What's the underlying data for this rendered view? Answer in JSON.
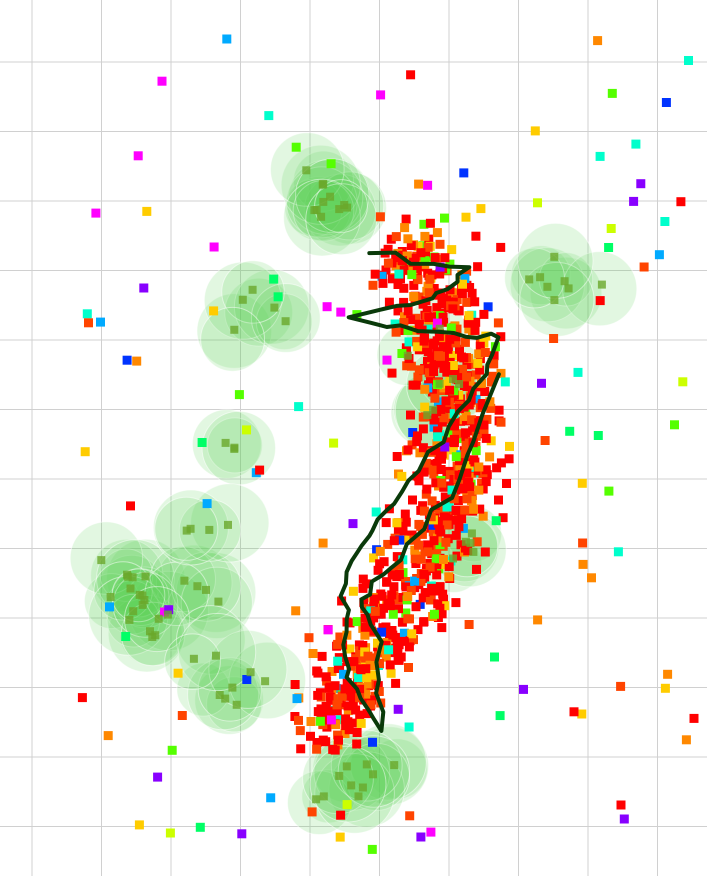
{
  "scene": {
    "background": "#ffffff",
    "grid_color": "#d0d0d0",
    "blob_color": "#5fd35a",
    "path_color": "#0a3a0a",
    "point_palette": [
      "#ff0000",
      "#ff4400",
      "#ff8800",
      "#ffcc00",
      "#ccff00",
      "#55ff00",
      "#00ff66",
      "#00ffcc",
      "#00aaff",
      "#0033ff",
      "#8800ff",
      "#ff00ff"
    ]
  }
}
